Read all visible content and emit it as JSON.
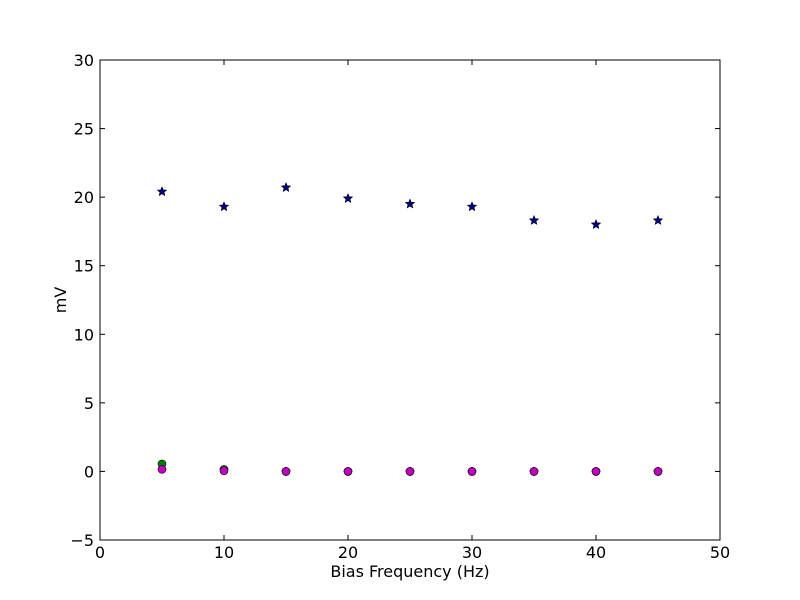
{
  "chart_data": {
    "type": "scatter",
    "title": "",
    "xlabel": "Bias Frequency (Hz)",
    "ylabel": "mV",
    "xlim": [
      0,
      50
    ],
    "ylim": [
      -5,
      30
    ],
    "xticks": [
      0,
      10,
      20,
      30,
      40,
      50
    ],
    "yticks": [
      -5,
      0,
      5,
      10,
      15,
      20,
      25,
      30
    ],
    "grid": false,
    "legend": "none",
    "series": [
      {
        "marker": "star",
        "color": "#000080",
        "x": [
          5,
          10,
          15,
          20,
          25,
          30,
          35,
          40,
          45
        ],
        "y": [
          20.4,
          19.3,
          20.7,
          19.9,
          19.5,
          19.3,
          18.3,
          18.0,
          18.3
        ]
      },
      {
        "marker": "circle",
        "color": "#007f00",
        "x": [
          5,
          10,
          15,
          20,
          25,
          30,
          35,
          40,
          45
        ],
        "y": [
          0.55,
          0.15,
          0.0,
          0.0,
          0.0,
          0.0,
          0.0,
          0.0,
          0.0
        ]
      },
      {
        "marker": "circle",
        "color": "#bf00bf",
        "x": [
          5,
          10,
          15,
          20,
          25,
          30,
          35,
          40,
          45
        ],
        "y": [
          0.15,
          0.05,
          0.0,
          0.0,
          0.0,
          0.0,
          0.0,
          0.0,
          0.0
        ]
      }
    ]
  }
}
